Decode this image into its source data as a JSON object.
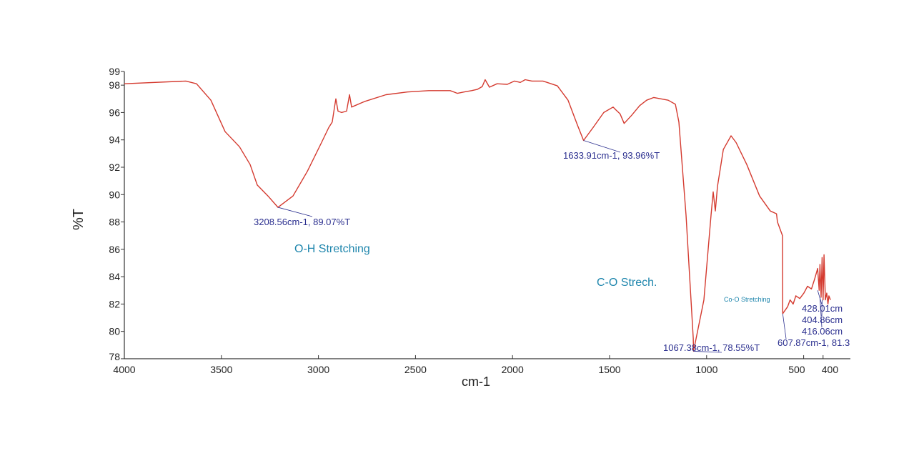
{
  "chart_data": {
    "type": "line",
    "title": "",
    "xlabel": "cm-1",
    "ylabel": "%T",
    "xlim": [
      4000,
      259
    ],
    "ylim": [
      78,
      99
    ],
    "x_reversed": true,
    "grid": false,
    "x_ticks": [
      4000,
      3500,
      3000,
      2500,
      2000,
      1500,
      1000,
      500,
      400
    ],
    "x_tick_labels": [
      "4000",
      "3500",
      "3000",
      "2500",
      "2000",
      "1500",
      "1000",
      "500",
      "400"
    ],
    "y_ticks": [
      99,
      98,
      96,
      94,
      92,
      90,
      88,
      86,
      84,
      82,
      80,
      78
    ],
    "y_tick_labels": [
      "99",
      "98",
      "96",
      "94",
      "92",
      "90",
      "88",
      "86",
      "84",
      "82",
      "80",
      "78"
    ],
    "colors": {
      "series": "#d43a2f",
      "peak_label": "#2b2f8f",
      "group_label": "#1f86ad",
      "axis": "#333333"
    },
    "series": [
      {
        "x": [
          4000,
          3683,
          3628,
          3554,
          3481,
          3407,
          3352,
          3315,
          3260,
          3208.56,
          3131,
          3057,
          2984,
          2947,
          2929,
          2917,
          2910,
          2899,
          2881,
          2855,
          2840,
          2829,
          2763,
          2652,
          2542,
          2432,
          2321,
          2284,
          2250,
          2211,
          2180,
          2156,
          2141,
          2119,
          2080,
          2027,
          1990,
          1960,
          1935,
          1900,
          1843,
          1769,
          1714,
          1666,
          1633.91,
          1585,
          1530,
          1482,
          1468,
          1446,
          1425,
          1386,
          1345,
          1309,
          1272,
          1198,
          1161,
          1143,
          1106,
          1069,
          1067.38,
          1014,
          977,
          966,
          955,
          944,
          914,
          874,
          848,
          793,
          727,
          672,
          640,
          635,
          609,
          607.87,
          583,
          570,
          554,
          540,
          520,
          499,
          480,
          460,
          444,
          428.01,
          420,
          416.06,
          410,
          404.86,
          400,
          395,
          388,
          381,
          375,
          370,
          362
        ],
        "y": [
          98.1,
          98.3,
          98.1,
          96.9,
          94.6,
          93.5,
          92.2,
          90.7,
          89.9,
          89.07,
          89.9,
          91.7,
          93.8,
          94.9,
          95.3,
          96.4,
          97.0,
          96.1,
          96.0,
          96.1,
          97.3,
          96.4,
          96.8,
          97.3,
          97.5,
          97.6,
          97.6,
          97.4,
          97.5,
          97.6,
          97.7,
          97.9,
          98.4,
          97.85,
          98.1,
          98.06,
          98.3,
          98.2,
          98.4,
          98.3,
          98.3,
          97.95,
          96.9,
          95.1,
          93.96,
          94.9,
          96.0,
          96.4,
          96.2,
          95.9,
          95.2,
          95.8,
          96.5,
          96.9,
          97.1,
          96.9,
          96.6,
          95.3,
          88.5,
          79.5,
          78.55,
          82.3,
          88.5,
          90.2,
          88.8,
          90.6,
          93.3,
          94.3,
          93.8,
          92.2,
          89.9,
          88.8,
          88.6,
          88.0,
          87.0,
          81.3,
          81.8,
          82.3,
          82.0,
          82.6,
          82.4,
          82.8,
          83.3,
          83.1,
          83.8,
          84.6,
          83.0,
          84.9,
          82.5,
          85.4,
          82.3,
          85.6,
          82.3,
          82.8,
          82.0,
          82.6,
          82.3
        ]
      }
    ],
    "peak_annotations": [
      {
        "label": "3208.56cm-1, 89.07%T",
        "x": 3208.56,
        "y": 89.07
      },
      {
        "label": "1633.91cm-1, 93.96%T",
        "x": 1633.91,
        "y": 93.96
      },
      {
        "label": "1067.38cm-1, 78.55%T",
        "x": 1067.38,
        "y": 78.55
      },
      {
        "label": "607.87cm-1, 81.3",
        "x": 607.87,
        "y": 81.3
      },
      {
        "label": "428.01cm",
        "x": 428.01,
        "y": 83.0
      },
      {
        "label": "404.86cm",
        "x": 404.86,
        "y": 82.3
      },
      {
        "label": "416.06cm",
        "x": 416.06,
        "y": 82.5
      }
    ],
    "group_annotations": [
      {
        "label": "O-H Stretching"
      },
      {
        "label": "C-O Strech."
      },
      {
        "label": "Co-O Stretching"
      }
    ]
  }
}
